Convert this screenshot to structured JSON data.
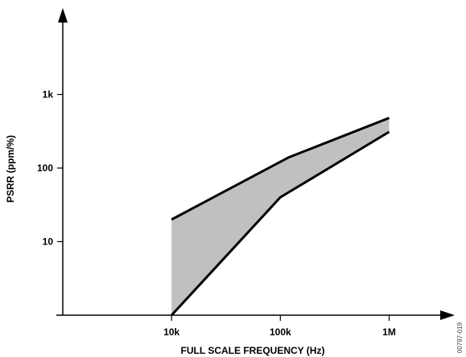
{
  "chart_data": {
    "type": "area",
    "xlabel": "FULL SCALE FREQUENCY (Hz)",
    "ylabel": "PSRR (ppm/%)",
    "x_scale": "log",
    "y_scale": "log",
    "x_ticks": [
      {
        "value": 10000,
        "label": "10k"
      },
      {
        "value": 100000,
        "label": "100k"
      },
      {
        "value": 1000000,
        "label": "1M"
      }
    ],
    "y_ticks": [
      {
        "value": 10,
        "label": "10"
      },
      {
        "value": 100,
        "label": "100"
      },
      {
        "value": 1000,
        "label": "1k"
      }
    ],
    "xlim": [
      1000,
      3000000
    ],
    "ylim": [
      1,
      10000
    ],
    "upper_bound": {
      "x": [
        10000,
        120000,
        1000000
      ],
      "y": [
        20,
        140,
        480
      ]
    },
    "lower_bound": {
      "x": [
        10000,
        100000,
        1000000
      ],
      "y": [
        1,
        40,
        310
      ]
    },
    "fill_color": "#c0c0c0",
    "line_color": "#000000",
    "grid": false,
    "legend": "none"
  },
  "figure_code": "00797-019"
}
